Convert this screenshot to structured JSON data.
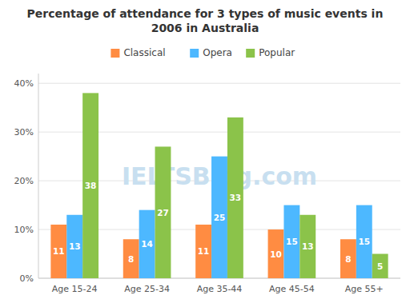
{
  "chart_data": {
    "type": "bar",
    "title": "Percentage of attendance for 3 types of music events in\n2006 in Australia",
    "categories": [
      "Age 15-24",
      "Age 25-34",
      "Age 35-44",
      "Age 45-54",
      "Age 55+"
    ],
    "series": [
      {
        "name": "Classical",
        "color": "#FF8C42",
        "values": [
          11,
          8,
          11,
          10,
          8
        ]
      },
      {
        "name": "Opera",
        "color": "#4DB8FF",
        "values": [
          13,
          14,
          25,
          15,
          15
        ]
      },
      {
        "name": "Popular",
        "color": "#8BC34A",
        "values": [
          38,
          27,
          33,
          13,
          5
        ]
      }
    ],
    "ylim": [
      0,
      42
    ],
    "yticks": [
      {
        "value": 0,
        "label": "0%"
      },
      {
        "value": 10,
        "label": "10%"
      },
      {
        "value": 20,
        "label": "20%"
      },
      {
        "value": 30,
        "label": "30%"
      },
      {
        "value": 40,
        "label": "40%"
      }
    ],
    "grid": true,
    "legend": "top",
    "data_labels": true,
    "annotations": [
      {
        "text": "IELTSBlog.com"
      }
    ]
  }
}
